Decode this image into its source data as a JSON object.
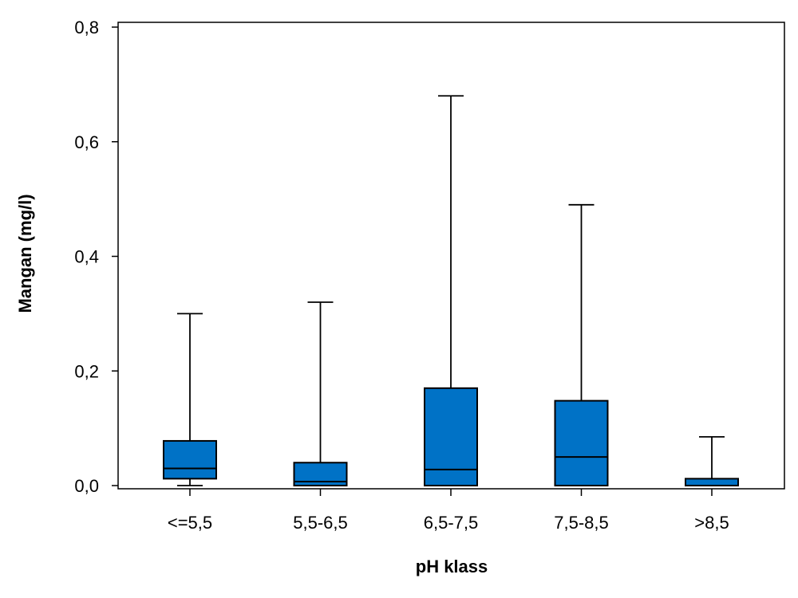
{
  "chart_data": {
    "type": "box",
    "title": "",
    "xlabel": "pH klass",
    "ylabel": "Mangan (mg/l)",
    "ylim": [
      0,
      0.8
    ],
    "yticks": [
      0.0,
      0.2,
      0.4,
      0.6,
      0.8
    ],
    "ytick_labels": [
      "0,0",
      "0,2",
      "0,4",
      "0,6",
      "0,8"
    ],
    "categories": [
      "<=5,5",
      "5,5-6,5",
      "6,5-7,5",
      "7,5-8,5",
      ">8,5"
    ],
    "boxes": [
      {
        "min": 0.0,
        "q1": 0.012,
        "median": 0.03,
        "q3": 0.078,
        "max": 0.3
      },
      {
        "min": 0.0,
        "q1": 0.0,
        "median": 0.007,
        "q3": 0.04,
        "max": 0.32
      },
      {
        "min": 0.0,
        "q1": 0.0,
        "median": 0.028,
        "q3": 0.17,
        "max": 0.68
      },
      {
        "min": 0.0,
        "q1": 0.0,
        "median": 0.05,
        "q3": 0.148,
        "max": 0.49
      },
      {
        "min": 0.0,
        "q1": 0.0,
        "median": 0.0,
        "q3": 0.012,
        "max": 0.085
      }
    ],
    "box_color": "#0072C6",
    "grid": false,
    "legend": "none"
  }
}
